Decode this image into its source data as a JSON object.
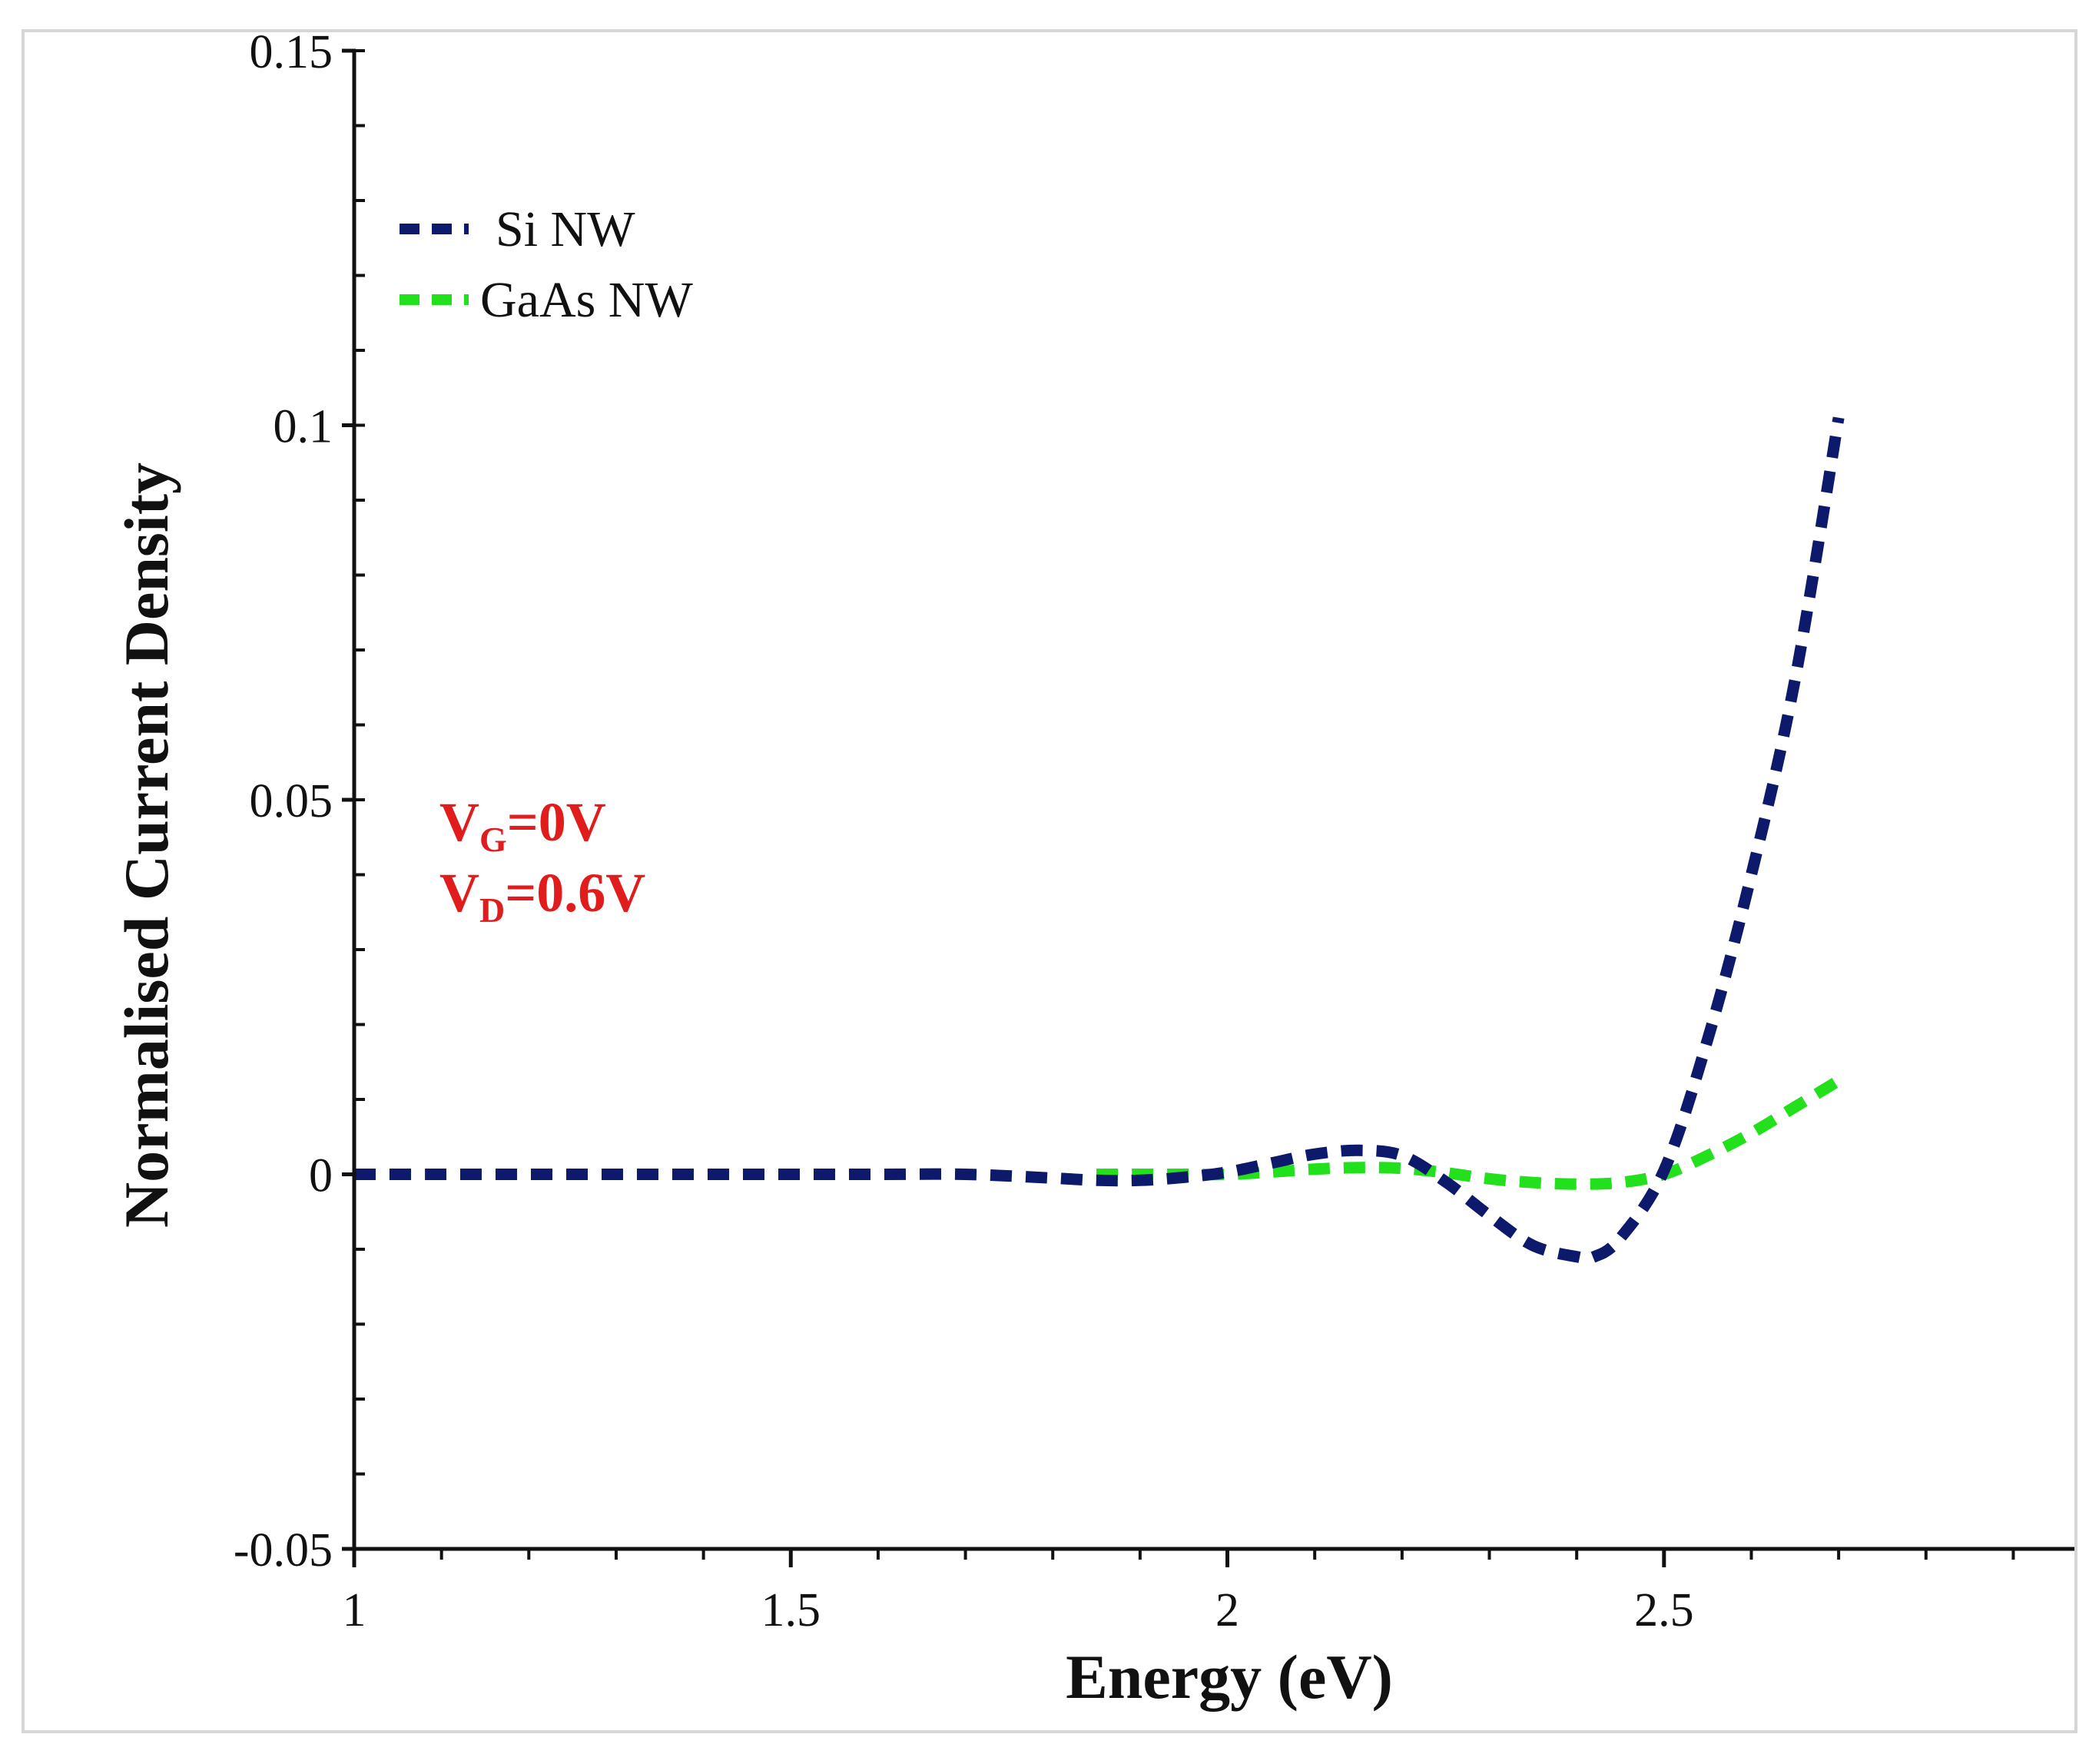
{
  "chart_data": {
    "type": "line",
    "title": "",
    "xlabel": "Energy (eV)",
    "ylabel": "Normalised Current Density",
    "xlim": [
      1,
      2.97
    ],
    "ylim": [
      -0.05,
      0.15
    ],
    "x_ticks": [
      {
        "value": 1,
        "label": "1"
      },
      {
        "value": 1.5,
        "label": "1.5"
      },
      {
        "value": 2,
        "label": "2"
      },
      {
        "value": 2.5,
        "label": "2.5"
      }
    ],
    "y_ticks": [
      {
        "value": -0.05,
        "label": "-0.05"
      },
      {
        "value": 0,
        "label": "0"
      },
      {
        "value": 0.05,
        "label": "0.05"
      },
      {
        "value": 0.1,
        "label": "0.1"
      },
      {
        "value": 0.15,
        "label": "0.15"
      }
    ],
    "legend_position": "top-left",
    "series": [
      {
        "name": "Si NW",
        "color": "#0d1a6b",
        "style": "dashed",
        "x": [
          1.0,
          1.1,
          1.2,
          1.3,
          1.4,
          1.5,
          1.6,
          1.7,
          1.8,
          1.85,
          1.9,
          1.95,
          2.0,
          2.05,
          2.1,
          2.15,
          2.2,
          2.25,
          2.3,
          2.35,
          2.4,
          2.42,
          2.45,
          2.5,
          2.55,
          2.6,
          2.65,
          2.7
        ],
        "y": [
          0.0,
          0.0,
          0.0,
          0.0,
          0.0,
          0.0,
          0.0,
          0.0,
          -0.0005,
          -0.0008,
          -0.0008,
          -0.0004,
          0.0003,
          0.0015,
          0.0027,
          0.0032,
          0.0025,
          -0.001,
          -0.0055,
          -0.0095,
          -0.011,
          -0.011,
          -0.0085,
          0.0005,
          0.018,
          0.04,
          0.066,
          0.101
        ]
      },
      {
        "name": "GaAs NW",
        "color": "#22e01c",
        "style": "dashed",
        "x": [
          1.85,
          1.9,
          1.95,
          2.0,
          2.05,
          2.1,
          2.15,
          2.2,
          2.25,
          2.3,
          2.35,
          2.4,
          2.45,
          2.5,
          2.55,
          2.6,
          2.65,
          2.7
        ],
        "y": [
          0.0,
          0.0,
          0.0,
          0.0,
          0.0003,
          0.0007,
          0.0009,
          0.0008,
          0.0002,
          -0.0006,
          -0.0011,
          -0.0013,
          -0.0011,
          0.0,
          0.0025,
          0.0055,
          0.009,
          0.0125
        ]
      }
    ],
    "annotations": [
      {
        "main": "V",
        "sub": "G",
        "rest": "=0V"
      },
      {
        "main": "V",
        "sub": "D",
        "rest": "=0.6V"
      }
    ],
    "annotation_color": "#e01c1c"
  }
}
